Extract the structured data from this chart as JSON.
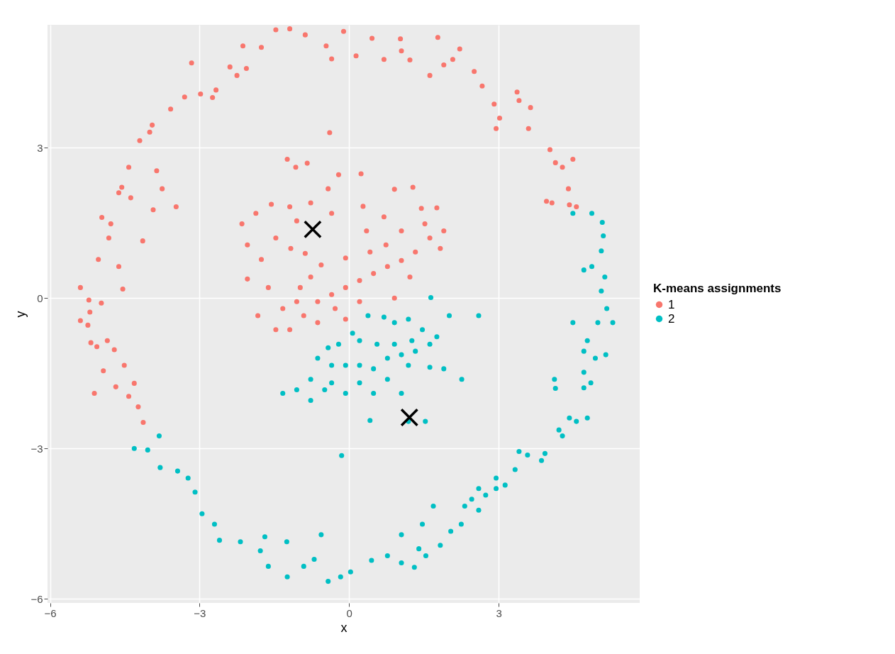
{
  "chart_data": {
    "type": "scatter",
    "xlabel": "x",
    "ylabel": "y",
    "legend_title": "K-means assignments",
    "legend": "right",
    "grid": true,
    "marker": "circle",
    "xlim": [
      -6.05,
      5.83
    ],
    "ylim": [
      -6.08,
      5.45
    ],
    "xticks": [
      -6,
      -3,
      0,
      3
    ],
    "yticks": [
      -6,
      -3,
      0,
      3
    ],
    "series": [
      {
        "name": "1",
        "color": "#f8766d",
        "x": [
          -0.11,
          0.46,
          1.03,
          1.78,
          2.22,
          2.08,
          2.51,
          2.67,
          2.91,
          3.02,
          3.41,
          3.64,
          3.6,
          4.03,
          4.28,
          4.49,
          4.4,
          4.42,
          4.07,
          4.56,
          -5.39,
          -5.24,
          -5.18,
          -5.06,
          -4.71,
          -4.93,
          -4.68,
          -4.42,
          -4.13,
          -4.23,
          -5.11,
          -5.22,
          -5.39,
          -5.03,
          -4.82,
          -4.96,
          -4.62,
          -4.42,
          -4.2,
          -3.95,
          -3.58,
          -3.3,
          -2.98,
          -2.67,
          -2.39,
          -2.13,
          -1.76,
          -1.19,
          -0.88,
          -0.46,
          0.14,
          0.7,
          1.22,
          1.62,
          1.9,
          -3.16,
          -2.06,
          -4.0,
          -4.38,
          -3.86,
          -3.93,
          -4.14,
          -4.54,
          -4.62,
          -3.75,
          -3.47,
          -2.74,
          -2.25,
          -1.47,
          -0.35,
          1.05,
          2.95,
          3.37,
          4.14,
          3.96,
          -4.97,
          -4.78,
          -4.56,
          -5.2,
          -4.85,
          -4.51,
          -4.31,
          -1.07,
          -0.39,
          -0.84,
          -1.24,
          -0.21,
          0.24,
          0.91,
          1.28,
          1.76,
          1.52,
          1.05,
          0.74,
          0.42,
          -0.07,
          -0.56,
          -0.88,
          -1.17,
          -1.47,
          -1.76,
          -2.04,
          -1.62,
          -1.33,
          -1.19,
          -0.91,
          -0.63,
          -0.35,
          -0.07,
          0.21,
          0.49,
          0.77,
          1.05,
          1.33,
          1.62,
          1.83,
          -0.28,
          -0.63,
          -0.07,
          -0.98,
          -1.83,
          -1.47,
          -2.15,
          -1.87,
          0.35,
          0.7,
          1.45,
          1.9,
          -0.35,
          -0.77,
          -2.04,
          0.28,
          -0.42,
          0.91,
          0.21,
          -0.77,
          -1.05,
          1.22,
          -1.19,
          -1.05,
          -1.56
        ],
        "values": [
          5.32,
          5.18,
          5.17,
          5.2,
          4.97,
          4.76,
          4.52,
          4.23,
          3.87,
          3.59,
          3.94,
          3.8,
          3.38,
          2.96,
          2.61,
          2.77,
          2.18,
          1.86,
          1.9,
          1.82,
          -0.45,
          -0.54,
          -0.89,
          -0.97,
          -1.03,
          -1.45,
          -1.77,
          -1.96,
          -2.48,
          -2.17,
          -1.9,
          -0.04,
          0.21,
          0.77,
          1.2,
          1.61,
          2.1,
          2.61,
          3.14,
          3.45,
          3.77,
          4.01,
          4.07,
          4.15,
          4.61,
          5.03,
          5.0,
          5.37,
          5.25,
          5.03,
          4.83,
          4.76,
          4.75,
          4.44,
          4.65,
          4.69,
          4.58,
          3.31,
          2.0,
          2.54,
          1.76,
          1.14,
          0.18,
          0.63,
          2.18,
          1.82,
          4.0,
          4.44,
          5.35,
          4.77,
          4.93,
          3.38,
          4.11,
          2.7,
          1.93,
          -0.1,
          1.48,
          2.21,
          -0.28,
          -0.85,
          -1.34,
          -1.7,
          2.61,
          3.3,
          2.69,
          2.77,
          2.46,
          2.48,
          2.17,
          2.21,
          1.8,
          1.48,
          1.34,
          1.06,
          0.92,
          0.8,
          0.66,
          0.89,
          0.99,
          1.2,
          0.77,
          0.38,
          0.21,
          -0.21,
          -0.63,
          -0.35,
          -0.07,
          0.07,
          0.21,
          0.35,
          0.49,
          0.63,
          0.75,
          0.92,
          1.2,
          0.99,
          -0.21,
          -0.49,
          -0.42,
          0.21,
          -0.35,
          -0.63,
          1.48,
          1.69,
          1.34,
          1.62,
          1.79,
          1.34,
          1.69,
          1.9,
          1.06,
          1.83,
          2.18,
          0.0,
          -0.07,
          0.42,
          -0.07,
          0.42,
          1.82,
          1.54,
          1.87
        ]
      },
      {
        "name": "2",
        "color": "#00bfc4",
        "x": [
          4.49,
          4.87,
          5.08,
          5.1,
          5.06,
          4.87,
          4.71,
          5.13,
          5.06,
          5.17,
          4.99,
          5.29,
          5.15,
          4.78,
          4.71,
          4.71,
          4.85,
          4.71,
          4.78,
          4.56,
          4.42,
          4.28,
          4.21,
          4.14,
          3.93,
          3.86,
          3.58,
          3.41,
          3.33,
          3.13,
          2.95,
          2.74,
          2.46,
          2.6,
          2.32,
          2.25,
          2.04,
          1.83,
          1.54,
          1.31,
          1.05,
          0.77,
          0.45,
          0.03,
          -0.17,
          -0.42,
          -0.7,
          -0.91,
          -1.24,
          -1.62,
          -1.78,
          -2.18,
          -2.6,
          -2.7,
          -2.95,
          -3.09,
          -3.23,
          -3.44,
          -3.79,
          -4.04,
          -4.31,
          -3.81,
          -1.69,
          -1.25,
          -0.56,
          1.05,
          1.47,
          1.69,
          1.4,
          2.6,
          2.95,
          4.12,
          4.94,
          4.49,
          0.38,
          0.7,
          0.91,
          1.19,
          1.47,
          1.76,
          1.26,
          0.91,
          0.56,
          0.21,
          0.07,
          -0.21,
          -0.42,
          -0.63,
          -0.35,
          -0.07,
          0.21,
          0.49,
          0.77,
          1.05,
          1.33,
          1.62,
          1.9,
          2.01,
          2.26,
          1.62,
          1.19,
          0.77,
          0.49,
          0.21,
          -0.35,
          -0.77,
          -1.05,
          -1.33,
          -0.77,
          -0.49,
          -0.07,
          1.05,
          1.19,
          1.53,
          0.42,
          2.6,
          1.64,
          -0.15
        ],
        "values": [
          1.69,
          1.69,
          1.51,
          1.24,
          0.94,
          0.63,
          0.56,
          0.42,
          0.14,
          -0.21,
          -0.49,
          -0.49,
          -1.13,
          -0.85,
          -1.06,
          -1.48,
          -1.69,
          -1.79,
          -2.39,
          -2.46,
          -2.39,
          -2.75,
          -2.63,
          -1.8,
          -3.1,
          -3.24,
          -3.13,
          -3.06,
          -3.42,
          -3.73,
          -3.8,
          -3.93,
          -4.01,
          -4.23,
          -4.15,
          -4.51,
          -4.65,
          -4.93,
          -5.14,
          -5.37,
          -5.28,
          -5.14,
          -5.23,
          -5.46,
          -5.56,
          -5.65,
          -5.21,
          -5.35,
          -5.56,
          -5.35,
          -5.04,
          -4.86,
          -4.83,
          -4.51,
          -4.3,
          -3.87,
          -3.59,
          -3.45,
          -3.38,
          -3.03,
          -3.0,
          -2.75,
          -4.76,
          -4.86,
          -4.72,
          -4.72,
          -4.51,
          -4.15,
          -5.0,
          -3.8,
          -3.59,
          -1.62,
          -1.2,
          -0.49,
          -0.35,
          -0.38,
          -0.49,
          -0.42,
          -0.63,
          -0.77,
          -0.85,
          -0.92,
          -0.92,
          -0.85,
          -0.7,
          -0.92,
          -0.99,
          -1.2,
          -1.34,
          -1.34,
          -1.34,
          -1.41,
          -1.2,
          -1.13,
          -1.06,
          -0.92,
          -1.41,
          -0.35,
          -1.62,
          -1.38,
          -1.34,
          -1.62,
          -1.9,
          -1.69,
          -1.69,
          -1.62,
          -1.83,
          -1.9,
          -2.04,
          -1.83,
          -1.9,
          -1.9,
          -2.46,
          -2.46,
          -2.44,
          -0.35,
          0.01,
          -3.14
        ]
      },
      {
        "color": "#000000",
        "marker": "cross",
        "x": [
          -0.73,
          1.21
        ],
        "values": [
          1.37,
          -2.38
        ]
      }
    ]
  }
}
